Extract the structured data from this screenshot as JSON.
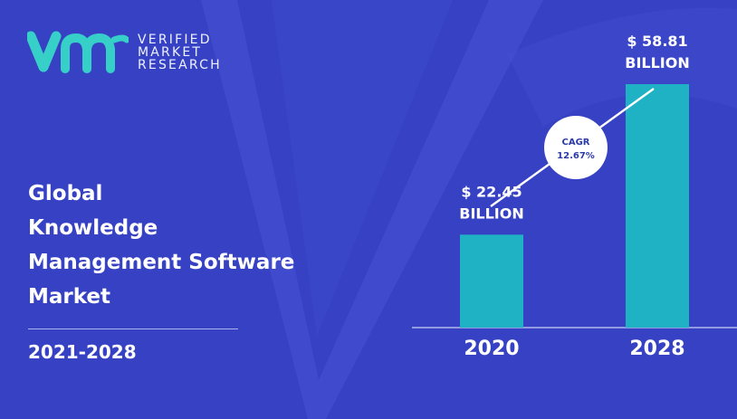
{
  "logo": {
    "lines": [
      "VERIFIED",
      "MARKET",
      "RESEARCH"
    ]
  },
  "title_lines": [
    "Global",
    "Knowledge",
    "Management Software",
    "Market"
  ],
  "period": "2021-2028",
  "colors": {
    "background": "#3a46c8",
    "bar": "#1fb2c4",
    "logo_teal": "#36d0c8"
  },
  "cagr": {
    "label": "CAGR",
    "value": "12.67%"
  },
  "chart_data": {
    "type": "bar",
    "categories": [
      "2020",
      "2028"
    ],
    "values": [
      22.45,
      58.81
    ],
    "value_labels": [
      [
        "$ 22.45",
        "BILLION"
      ],
      [
        "$ 58.81",
        "BILLION"
      ]
    ],
    "title": "",
    "xlabel": "",
    "ylabel": "",
    "ylim": [
      0,
      58.81
    ],
    "grid": false,
    "legend": "none"
  }
}
